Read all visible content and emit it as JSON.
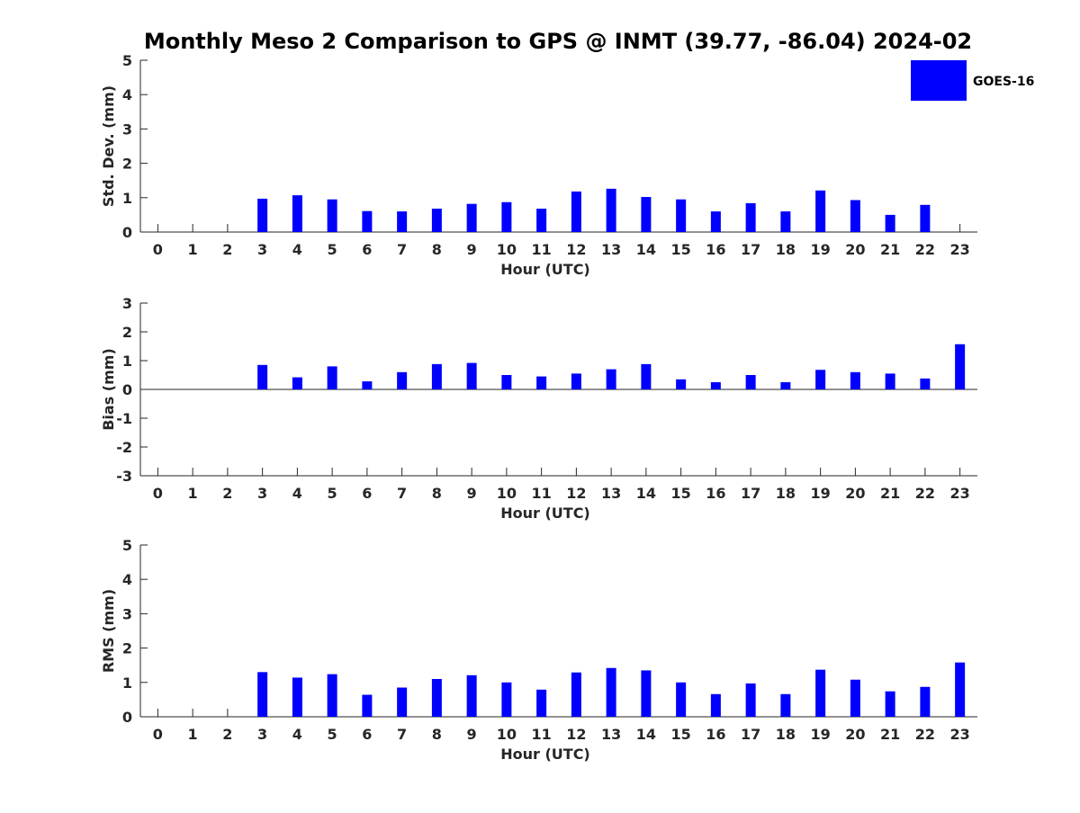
{
  "figure": {
    "title": "Monthly Meso 2 Comparison to GPS @ INMT (39.77, -86.04) 2024-02"
  },
  "legend": {
    "label": "GOES-16",
    "color": "#0000ff",
    "placement": "top-right"
  },
  "chart_data": [
    {
      "type": "bar",
      "title": "Monthly Meso 2 Comparison to GPS @ INMT (39.77, -86.04) 2024-02",
      "xlabel": "Hour (UTC)",
      "ylabel": "Std. Dev. (mm)",
      "categories": [
        "0",
        "1",
        "2",
        "3",
        "4",
        "5",
        "6",
        "7",
        "8",
        "9",
        "10",
        "11",
        "12",
        "13",
        "14",
        "15",
        "16",
        "17",
        "18",
        "19",
        "20",
        "21",
        "22",
        "23"
      ],
      "series": [
        {
          "name": "GOES-16",
          "color": "#0000ff",
          "values": [
            null,
            null,
            null,
            0.97,
            1.07,
            0.95,
            0.61,
            0.6,
            0.68,
            0.82,
            0.87,
            0.68,
            1.18,
            1.26,
            1.02,
            0.95,
            0.6,
            0.84,
            0.6,
            1.21,
            0.93,
            0.5,
            0.79,
            null
          ]
        }
      ],
      "xlim": [
        -0.5,
        23.5
      ],
      "ylim": [
        0,
        5
      ],
      "yticks": [
        0,
        1,
        2,
        3,
        4,
        5
      ],
      "grid": false
    },
    {
      "type": "bar",
      "xlabel": "Hour (UTC)",
      "ylabel": "Bias (mm)",
      "categories": [
        "0",
        "1",
        "2",
        "3",
        "4",
        "5",
        "6",
        "7",
        "8",
        "9",
        "10",
        "11",
        "12",
        "13",
        "14",
        "15",
        "16",
        "17",
        "18",
        "19",
        "20",
        "21",
        "22",
        "23"
      ],
      "series": [
        {
          "name": "GOES-16",
          "color": "#0000ff",
          "values": [
            null,
            null,
            null,
            0.85,
            0.42,
            0.8,
            0.28,
            0.6,
            0.88,
            0.92,
            0.5,
            0.45,
            0.55,
            0.7,
            0.88,
            0.35,
            0.25,
            0.5,
            0.25,
            0.68,
            0.6,
            0.55,
            0.38,
            1.57
          ]
        }
      ],
      "xlim": [
        -0.5,
        23.5
      ],
      "ylim": [
        -3,
        3
      ],
      "yticks": [
        -3,
        -2,
        -1,
        0,
        1,
        2,
        3
      ],
      "zero_line": true,
      "grid": false
    },
    {
      "type": "bar",
      "xlabel": "Hour (UTC)",
      "ylabel": "RMS (mm)",
      "categories": [
        "0",
        "1",
        "2",
        "3",
        "4",
        "5",
        "6",
        "7",
        "8",
        "9",
        "10",
        "11",
        "12",
        "13",
        "14",
        "15",
        "16",
        "17",
        "18",
        "19",
        "20",
        "21",
        "22",
        "23"
      ],
      "series": [
        {
          "name": "GOES-16",
          "color": "#0000ff",
          "values": [
            null,
            null,
            null,
            1.3,
            1.14,
            1.24,
            0.64,
            0.85,
            1.1,
            1.21,
            1.0,
            0.79,
            1.29,
            1.42,
            1.35,
            1.0,
            0.66,
            0.97,
            0.66,
            1.37,
            1.08,
            0.74,
            0.87,
            1.58
          ]
        }
      ],
      "xlim": [
        -0.5,
        23.5
      ],
      "ylim": [
        0,
        5
      ],
      "yticks": [
        0,
        1,
        2,
        3,
        4,
        5
      ],
      "grid": false
    }
  ]
}
